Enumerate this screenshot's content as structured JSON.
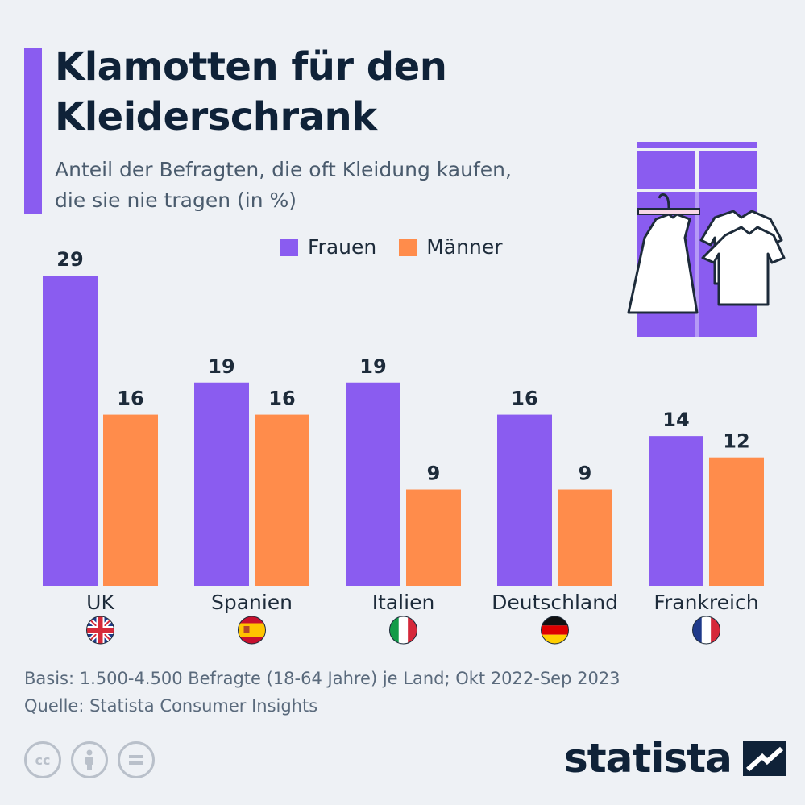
{
  "header": {
    "title_line1": "Klamotten für den",
    "title_line2": "Kleiderschrank",
    "subtitle_line1": "Anteil der Befragten, die oft Kleidung kaufen,",
    "subtitle_line2": "die sie nie tragen (in %)"
  },
  "legend": {
    "frauen": "Frauen",
    "maenner": "Männer"
  },
  "colors": {
    "frauen": "#8a5cf0",
    "maenner": "#ff8c4b",
    "accent": "#8a5cf0",
    "navy": "#0f2238"
  },
  "chart_data": {
    "type": "bar",
    "categories": [
      "UK",
      "Spanien",
      "Italien",
      "Deutschland",
      "Frankreich"
    ],
    "series": [
      {
        "name": "Frauen",
        "values": [
          29,
          19,
          19,
          16,
          14
        ]
      },
      {
        "name": "Männer",
        "values": [
          16,
          16,
          9,
          9,
          12
        ]
      }
    ],
    "ylim": [
      0,
      29
    ],
    "legend_position": "top",
    "grid": false
  },
  "flags": [
    "uk-flag-icon",
    "spain-flag-icon",
    "italy-flag-icon",
    "germany-flag-icon",
    "france-flag-icon"
  ],
  "footer": {
    "basis": "Basis: 1.500-4.500 Befragte (18-64 Jahre) je Land; Okt 2022-Sep 2023",
    "quelle": "Quelle: Statista Consumer Insights",
    "logo": "statista"
  }
}
